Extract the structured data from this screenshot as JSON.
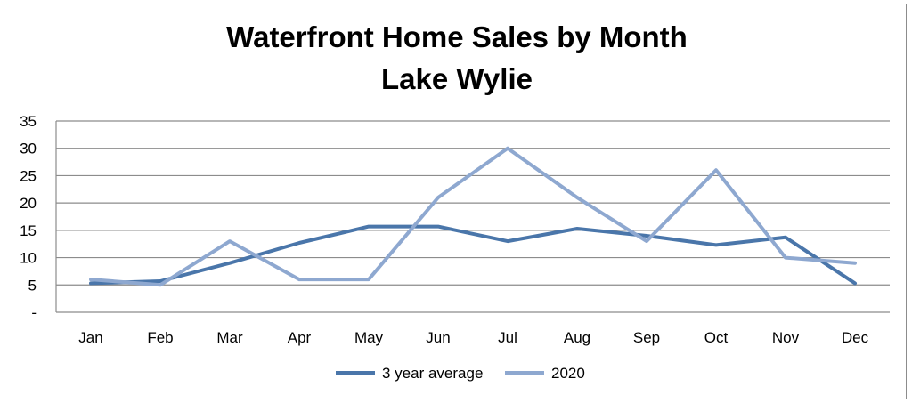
{
  "chart_data": {
    "type": "line",
    "title": "Waterfront Home Sales by Month",
    "subtitle": "Lake Wylie",
    "xlabel": "",
    "ylabel": "",
    "categories": [
      "Jan",
      "Feb",
      "Mar",
      "Apr",
      "May",
      "Jun",
      "Jul",
      "Aug",
      "Sep",
      "Oct",
      "Nov",
      "Dec"
    ],
    "y_ticks": [
      {
        "value": 0,
        "label": "-"
      },
      {
        "value": 5,
        "label": "5"
      },
      {
        "value": 10,
        "label": "10"
      },
      {
        "value": 15,
        "label": "15"
      },
      {
        "value": 20,
        "label": "20"
      },
      {
        "value": 25,
        "label": "25"
      },
      {
        "value": 30,
        "label": "30"
      },
      {
        "value": 35,
        "label": "35"
      }
    ],
    "ylim": [
      0,
      35
    ],
    "grid": true,
    "legend_position": "bottom",
    "series": [
      {
        "name": "3 year average",
        "color": "#4a76aa",
        "values": [
          5.3,
          5.7,
          9.0,
          12.7,
          15.7,
          15.7,
          13.0,
          15.3,
          14.0,
          12.3,
          13.7,
          5.3
        ]
      },
      {
        "name": "2020",
        "color": "#8ea8d0",
        "values": [
          6,
          5,
          13,
          6,
          6,
          21,
          30,
          21,
          13,
          26,
          10,
          9
        ]
      }
    ]
  }
}
